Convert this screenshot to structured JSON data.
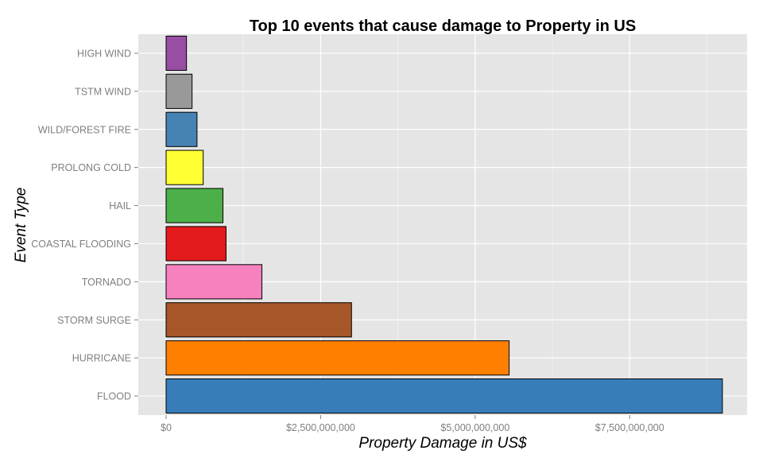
{
  "chart_data": {
    "type": "bar",
    "orientation": "horizontal",
    "title": "Top 10 events that cause damage to Property in US",
    "xlabel": "Property Damage in US$",
    "ylabel": "Event Type",
    "categories": [
      "FLOOD",
      "HURRICANE",
      "STORM SURGE",
      "TORNADO",
      "COASTAL FLOODING",
      "HAIL",
      "PROLONG COLD",
      "WILD/FOREST FIRE",
      "TSTM WIND",
      "HIGH WIND"
    ],
    "values": [
      9000000000,
      5550000000,
      3000000000,
      1550000000,
      970000000,
      920000000,
      600000000,
      500000000,
      420000000,
      330000000
    ],
    "colors": [
      "#377EB8",
      "#FF7F00",
      "#A65628",
      "#F781BF",
      "#E41A1C",
      "#4DAF4A",
      "#FFFF33",
      "#4682B4",
      "#999999",
      "#984EA3"
    ],
    "xlim": [
      -450000000,
      9400000000
    ],
    "xticks": [
      0,
      2500000000,
      5000000000,
      7500000000
    ],
    "xtick_labels": [
      "$0",
      "$2,500,000,000",
      "$5,000,000,000",
      "$7,500,000,000"
    ],
    "grid": true,
    "legend": "none",
    "panel_background": "#E5E5E5"
  }
}
